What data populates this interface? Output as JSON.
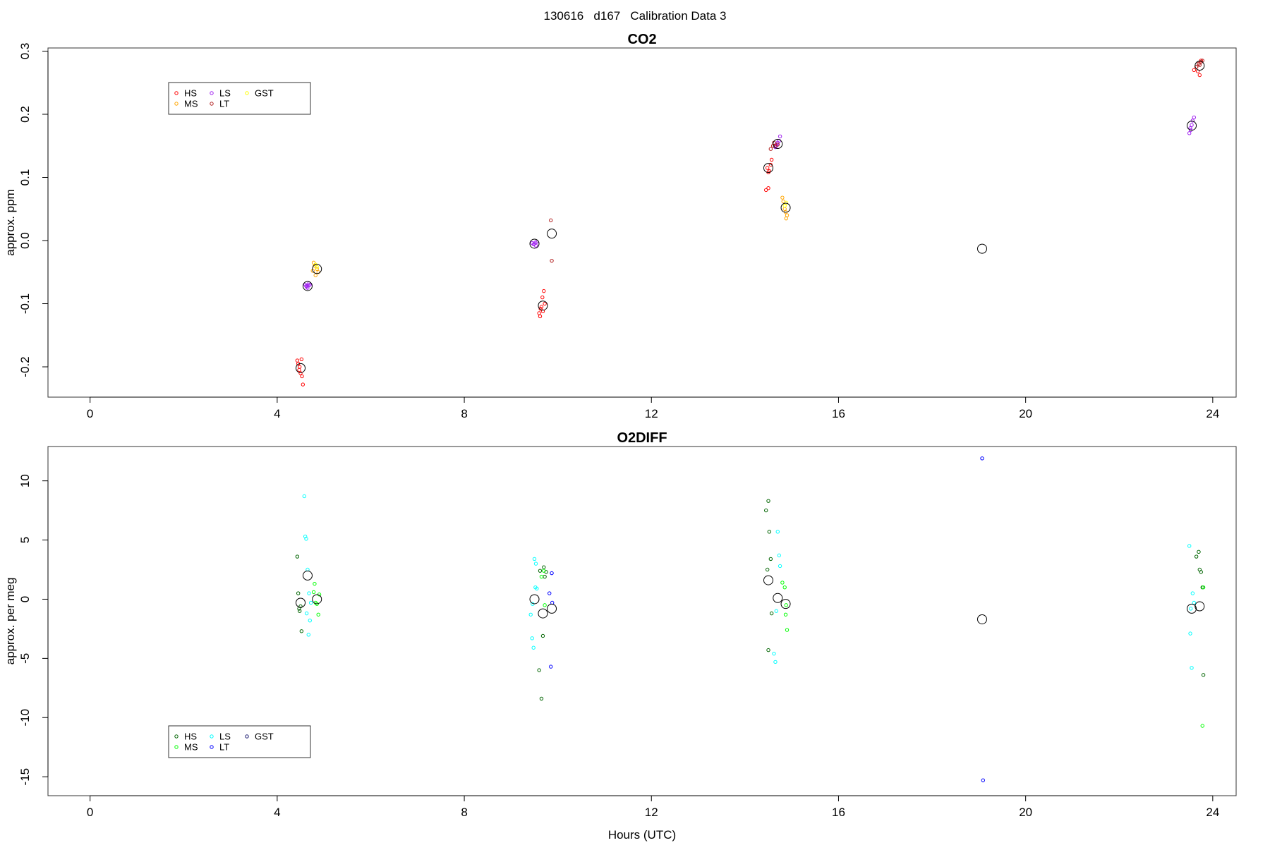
{
  "header": {
    "date": "130616",
    "day": "d167",
    "label": "Calibration Data 3"
  },
  "chart_data": [
    {
      "type": "scatter",
      "title": "CO2",
      "ylabel": "approx. ppm",
      "xlabel": "",
      "xlim": [
        -0.9,
        24.5
      ],
      "ylim": [
        -0.248,
        0.305
      ],
      "xticks": [
        0,
        4,
        8,
        12,
        16,
        20,
        24
      ],
      "xticklabels": [
        "0",
        "4",
        "8",
        "12",
        "16",
        "20",
        "24"
      ],
      "yticks": [
        -0.2,
        -0.1,
        0.0,
        0.1,
        0.2,
        0.3
      ],
      "yticklabels": [
        "-0.2",
        "-0.1",
        "0.0",
        "0.1",
        "0.2",
        "0.3"
      ],
      "grid": false,
      "legend": {
        "placement": "top-left",
        "entries": [
          {
            "name": "HS",
            "color": "#ff0000"
          },
          {
            "name": "MS",
            "color": "#ffa500"
          },
          {
            "name": "LS",
            "color": "#a020f0"
          },
          {
            "name": "LT",
            "color": "#b22222"
          },
          {
            "name": "GST",
            "color": "#ffff00"
          }
        ]
      },
      "series": [
        {
          "name": "HS",
          "color": "#ff0000",
          "x": [
            4.43,
            4.45,
            4.47,
            4.5,
            4.52,
            4.48,
            4.53,
            4.55,
            9.6,
            9.62,
            9.65,
            9.67,
            9.7,
            9.72,
            9.63,
            9.68,
            14.45,
            14.5,
            14.52,
            14.55,
            14.48,
            14.57,
            14.6,
            14.5,
            23.6,
            23.65,
            23.7,
            23.72,
            23.68,
            23.75
          ],
          "y": [
            -0.19,
            -0.195,
            -0.205,
            -0.21,
            -0.188,
            -0.2,
            -0.215,
            -0.228,
            -0.115,
            -0.12,
            -0.105,
            -0.09,
            -0.08,
            -0.1,
            -0.108,
            -0.112,
            0.08,
            0.083,
            0.11,
            0.12,
            0.115,
            0.128,
            0.15,
            0.108,
            0.27,
            0.275,
            0.28,
            0.262,
            0.268,
            0.285
          ]
        },
        {
          "name": "MS",
          "color": "#ffa500",
          "x": [
            4.78,
            4.8,
            4.82,
            4.85,
            4.88,
            4.76,
            14.8,
            14.82,
            14.85,
            14.87,
            14.9,
            14.88
          ],
          "y": [
            -0.035,
            -0.04,
            -0.055,
            -0.045,
            -0.05,
            -0.048,
            0.068,
            0.062,
            0.05,
            0.045,
            0.04,
            0.035
          ]
        },
        {
          "name": "LS",
          "color": "#a020f0",
          "x": [
            4.6,
            4.62,
            4.65,
            4.68,
            4.7,
            4.63,
            4.67,
            9.45,
            9.48,
            9.5,
            9.53,
            9.55,
            9.52,
            14.65,
            14.68,
            14.7,
            14.73,
            14.75,
            14.67,
            23.5,
            23.53,
            23.55,
            23.57,
            23.6,
            23.52
          ],
          "y": [
            -0.07,
            -0.072,
            -0.075,
            -0.068,
            -0.07,
            -0.073,
            -0.071,
            -0.004,
            -0.006,
            -0.005,
            -0.008,
            -0.002,
            -0.003,
            0.148,
            0.152,
            0.155,
            0.158,
            0.165,
            0.15,
            0.17,
            0.175,
            0.183,
            0.19,
            0.195,
            0.178
          ]
        },
        {
          "name": "LT",
          "color": "#b22222",
          "x": [
            9.85,
            9.87,
            14.55,
            14.6,
            14.62,
            14.65,
            14.7,
            23.65,
            23.7,
            23.72,
            23.75,
            23.78
          ],
          "y": [
            0.032,
            -0.032,
            0.145,
            0.15,
            0.155,
            0.15,
            0.152,
            0.275,
            0.28,
            0.278,
            0.283,
            0.285
          ]
        },
        {
          "name": "GST",
          "color": "#ffff00",
          "x": [
            4.82,
            4.85,
            14.85,
            14.88
          ],
          "y": [
            -0.038,
            -0.042,
            0.055,
            0.06
          ]
        }
      ],
      "means": {
        "color": "#000000",
        "x": [
          4.5,
          4.65,
          4.85,
          9.5,
          9.68,
          9.87,
          14.5,
          14.7,
          14.87,
          19.07,
          23.55,
          23.72
        ],
        "y": [
          -0.202,
          -0.072,
          -0.045,
          -0.005,
          -0.103,
          0.011,
          0.115,
          0.153,
          0.052,
          -0.013,
          0.182,
          0.277
        ]
      }
    },
    {
      "type": "scatter",
      "title": "O2DIFF",
      "ylabel": "approx. per meg",
      "xlabel": "Hours (UTC)",
      "xlim": [
        -0.9,
        24.5
      ],
      "ylim": [
        -16.6,
        12.9
      ],
      "xticks": [
        0,
        4,
        8,
        12,
        16,
        20,
        24
      ],
      "xticklabels": [
        "0",
        "4",
        "8",
        "12",
        "16",
        "20",
        "24"
      ],
      "yticks": [
        -15,
        -10,
        -5,
        0,
        5,
        10
      ],
      "yticklabels": [
        "-15",
        "-10",
        "-5",
        "0",
        "5",
        "10"
      ],
      "grid": false,
      "legend": {
        "placement": "bottom-left",
        "entries": [
          {
            "name": "HS",
            "color": "#006400"
          },
          {
            "name": "MS",
            "color": "#00ff00"
          },
          {
            "name": "LS",
            "color": "#00ffff"
          },
          {
            "name": "LT",
            "color": "#0000ff"
          },
          {
            "name": "GST",
            "color": "#191970"
          }
        ]
      },
      "series": [
        {
          "name": "HS",
          "color": "#006400",
          "x": [
            4.43,
            4.45,
            4.47,
            4.5,
            4.52,
            4.48,
            9.6,
            9.65,
            9.68,
            9.7,
            9.72,
            9.62,
            9.75,
            14.45,
            14.5,
            14.52,
            14.55,
            14.48,
            14.57,
            14.5,
            23.65,
            23.7,
            23.72,
            23.75,
            23.78,
            23.8
          ],
          "y": [
            3.6,
            0.5,
            -0.8,
            -0.6,
            -2.7,
            -1.0,
            -6.0,
            -8.4,
            -3.1,
            2.7,
            1.9,
            2.4,
            2.3,
            7.5,
            8.3,
            5.7,
            3.4,
            2.5,
            -1.2,
            -4.3,
            3.6,
            4.0,
            2.5,
            2.3,
            1.0,
            -6.4
          ]
        },
        {
          "name": "MS",
          "color": "#00ff00",
          "x": [
            4.8,
            4.85,
            4.88,
            4.82,
            4.9,
            4.78,
            9.65,
            9.7,
            9.72,
            14.8,
            14.85,
            14.87,
            14.9,
            14.88,
            23.78,
            23.8
          ],
          "y": [
            1.3,
            -0.4,
            -1.3,
            -0.3,
            0.4,
            0.6,
            1.9,
            2.4,
            -0.5,
            1.4,
            1.0,
            -1.3,
            -2.6,
            -0.5,
            -10.7,
            1.0
          ]
        },
        {
          "name": "LS",
          "color": "#00ffff",
          "x": [
            4.58,
            4.6,
            4.62,
            4.65,
            4.68,
            4.7,
            4.63,
            4.67,
            4.72,
            9.42,
            9.45,
            9.48,
            9.5,
            9.53,
            9.55,
            9.52,
            9.46,
            14.62,
            14.65,
            14.7,
            14.73,
            14.75,
            14.67,
            23.5,
            23.52,
            23.55,
            23.57,
            23.6,
            23.53
          ],
          "y": [
            8.7,
            5.3,
            5.1,
            2.5,
            0.5,
            -1.8,
            -1.2,
            -3.0,
            -0.3,
            -1.3,
            -3.3,
            -4.1,
            3.4,
            3.0,
            0.9,
            1.0,
            -0.4,
            -4.6,
            -5.3,
            5.7,
            3.7,
            2.8,
            -1.0,
            4.5,
            -2.9,
            -5.8,
            0.5,
            -0.3,
            -0.8
          ]
        },
        {
          "name": "LT",
          "color": "#0000ff",
          "x": [
            9.82,
            9.85,
            9.87,
            9.88,
            19.07,
            19.09
          ],
          "y": [
            0.5,
            -5.7,
            2.2,
            -0.3,
            11.9,
            -15.3
          ]
        },
        {
          "name": "GST",
          "color": "#191970",
          "x": [],
          "y": []
        }
      ],
      "means": {
        "color": "#000000",
        "x": [
          4.5,
          4.65,
          4.85,
          9.5,
          9.68,
          9.87,
          14.5,
          14.7,
          14.87,
          19.07,
          23.55,
          23.72
        ],
        "y": [
          -0.3,
          2.0,
          0.0,
          0.0,
          -1.2,
          -0.8,
          1.6,
          0.1,
          -0.4,
          -1.7,
          -0.8,
          -0.6
        ]
      }
    }
  ]
}
